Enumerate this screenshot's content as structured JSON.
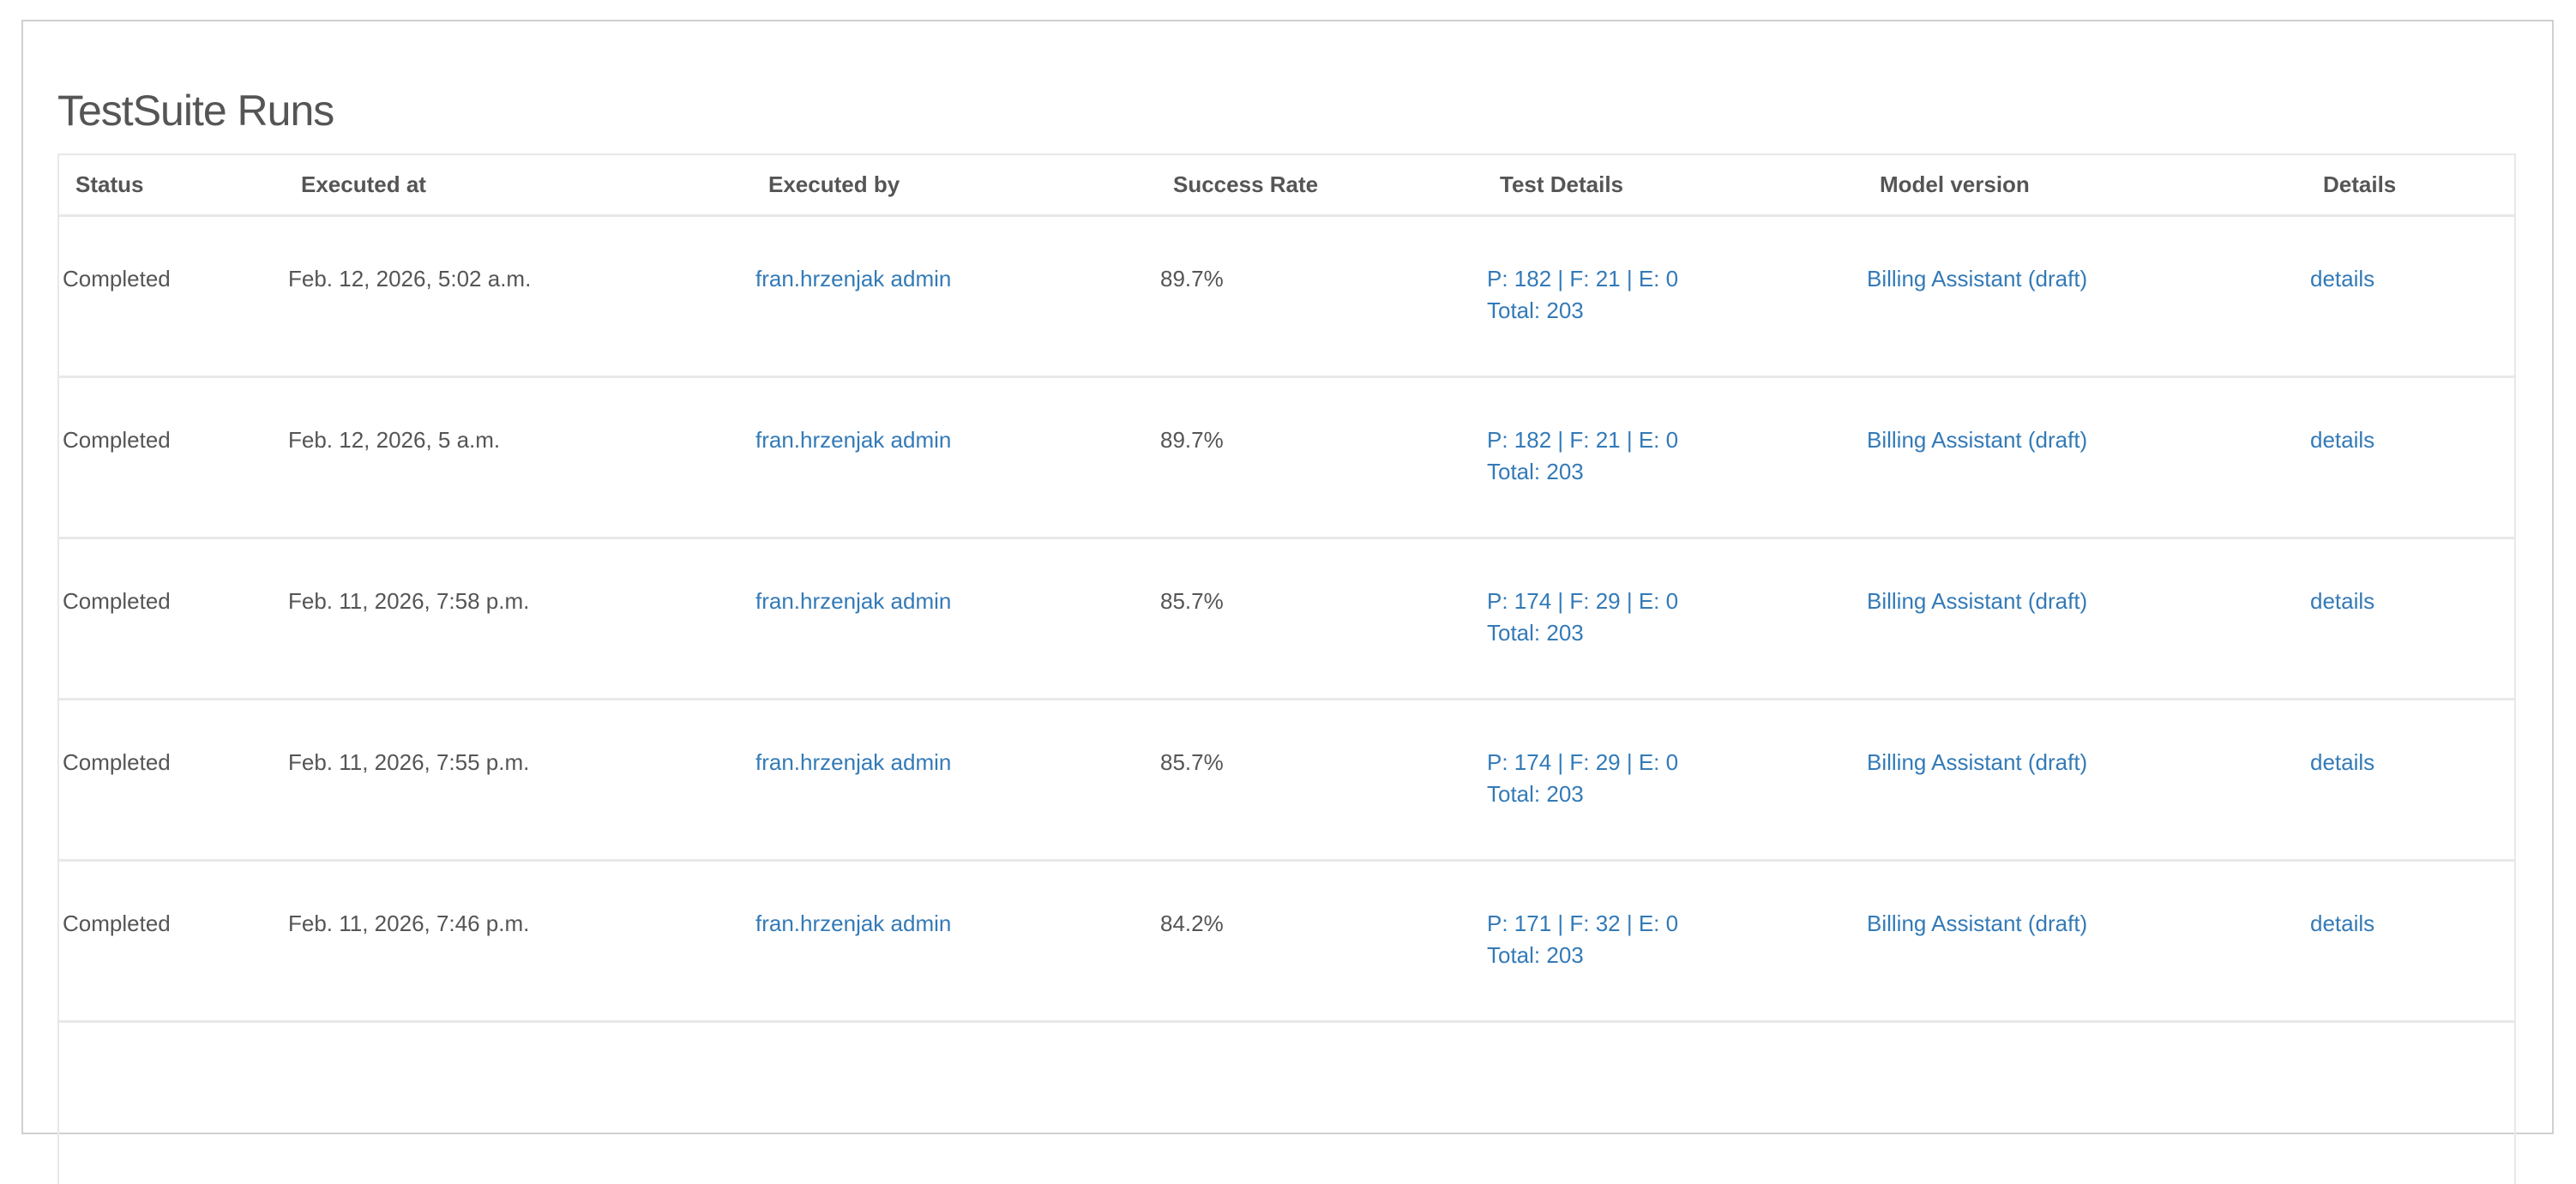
{
  "page": {
    "title": "TestSuite Runs"
  },
  "colors": {
    "link": "#337ab7",
    "success": "#1a8a1a",
    "text": "#555555"
  },
  "table": {
    "headers": [
      "Status",
      "Executed at",
      "Executed by",
      "Success Rate",
      "Test Details",
      "Model version",
      "Details"
    ],
    "rows": [
      {
        "status": "Completed",
        "executed_at": "Feb. 12, 2026, 5:02 a.m.",
        "executed_by": "fran.hrzenjak admin",
        "success_rate": "89.7%",
        "test_details": "P: 182 | F: 21 | E: 0",
        "total": "Total: 203",
        "model_version": "Billing Assistant (draft)",
        "details": "details"
      },
      {
        "status": "Completed",
        "executed_at": "Feb. 12, 2026, 5 a.m.",
        "executed_by": "fran.hrzenjak admin",
        "success_rate": "89.7%",
        "test_details": "P: 182 | F: 21 | E: 0",
        "total": "Total: 203",
        "model_version": "Billing Assistant (draft)",
        "details": "details"
      },
      {
        "status": "Completed",
        "executed_at": "Feb. 11, 2026, 7:58 p.m.",
        "executed_by": "fran.hrzenjak admin",
        "success_rate": "85.7%",
        "test_details": "P: 174 | F: 29 | E: 0",
        "total": "Total: 203",
        "model_version": "Billing Assistant (draft)",
        "details": "details"
      },
      {
        "status": "Completed",
        "executed_at": "Feb. 11, 2026, 7:55 p.m.",
        "executed_by": "fran.hrzenjak admin",
        "success_rate": "85.7%",
        "test_details": "P: 174 | F: 29 | E: 0",
        "total": "Total: 203",
        "model_version": "Billing Assistant (draft)",
        "details": "details"
      },
      {
        "status": "Completed",
        "executed_at": "Feb. 11, 2026, 7:46 p.m.",
        "executed_by": "fran.hrzenjak admin",
        "success_rate": "84.2%",
        "test_details": "P: 171 | F: 32 | E: 0",
        "total": "Total: 203",
        "model_version": "Billing Assistant (draft)",
        "details": "details"
      }
    ]
  }
}
